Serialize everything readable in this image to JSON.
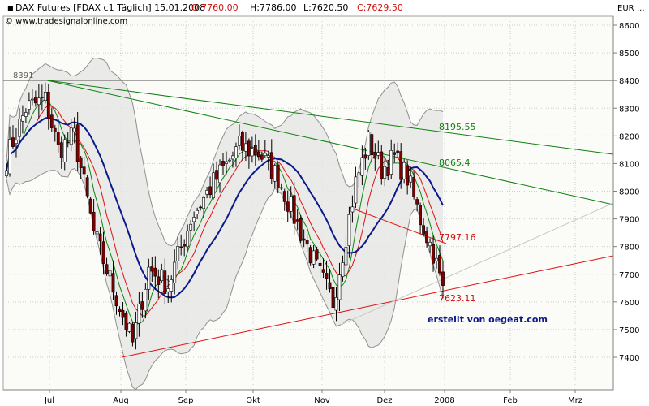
{
  "header": {
    "instrument": "DAX Futures [FDAX c1  Täglich] 15.01.2008",
    "open": "O:7760.00",
    "high": "H:7786.00",
    "low": "L:7620.50",
    "close": "C:7629.50",
    "copyright": "© www.tradesignalonline.com"
  },
  "colors": {
    "background": "#ffffff",
    "plot_background": "#fbfbf8",
    "grid": "#cccccc",
    "candle_up": "#ffffff",
    "candle_down": "#800000",
    "band_fill": "#e6e6e6",
    "band_line": "#909090",
    "ma_blue": "#0a1a8c",
    "ma_red": "#e01010",
    "ma_green": "#0a8a0a",
    "trend_green": "#108010",
    "trend_red": "#e01010",
    "horizontal": "#505050",
    "credit": "#0a1a8c"
  },
  "annotations": {
    "high_label": "8391",
    "upper_trend_label": "8195.55",
    "lower_trend_label": "8065.4",
    "red_trend_label": "7797.16",
    "last_label": "7623.11",
    "credit": "erstellt von oegeat.com"
  },
  "chart_data": {
    "type": "candlestick",
    "title": "DAX Futures [FDAX c1  Täglich] 15.01.2008",
    "currency_label": "EUR",
    "ylim": [
      7300,
      8650
    ],
    "y_ticks": [
      7400,
      7500,
      7600,
      7700,
      7800,
      7900,
      8000,
      8100,
      8200,
      8300,
      8400,
      8500,
      8600
    ],
    "y_tick_labels": [
      "7400",
      "7500",
      "7600",
      "7700",
      "7800",
      "7900",
      "8000",
      "8100",
      "8200",
      "8300",
      "8400",
      "8500",
      "8600"
    ],
    "x_tick_labels": [
      "Jul",
      "Aug",
      "Sep",
      "Okt",
      "Nov",
      "Dez",
      "2008",
      "Feb",
      "Mrz"
    ],
    "grid": true,
    "series": [
      {
        "kind": "price",
        "anchors": [
          {
            "i": 0,
            "v": 8120
          },
          {
            "i": 6,
            "v": 8300
          },
          {
            "i": 12,
            "v": 8330
          },
          {
            "i": 16,
            "v": 8150
          },
          {
            "i": 21,
            "v": 8200
          },
          {
            "i": 27,
            "v": 7850
          },
          {
            "i": 33,
            "v": 7650
          },
          {
            "i": 39,
            "v": 7450
          },
          {
            "i": 44,
            "v": 7720
          },
          {
            "i": 50,
            "v": 7660
          },
          {
            "i": 57,
            "v": 7900
          },
          {
            "i": 64,
            "v": 8030
          },
          {
            "i": 72,
            "v": 8160
          },
          {
            "i": 78,
            "v": 8140
          },
          {
            "i": 84,
            "v": 8050
          },
          {
            "i": 90,
            "v": 7880
          },
          {
            "i": 96,
            "v": 7720
          },
          {
            "i": 101,
            "v": 7600
          },
          {
            "i": 104,
            "v": 7780
          },
          {
            "i": 108,
            "v": 8030
          },
          {
            "i": 112,
            "v": 8180
          },
          {
            "i": 116,
            "v": 8080
          },
          {
            "i": 120,
            "v": 8120
          },
          {
            "i": 124,
            "v": 8050
          },
          {
            "i": 128,
            "v": 7900
          },
          {
            "i": 132,
            "v": 7780
          },
          {
            "i": 135,
            "v": 7640
          }
        ],
        "bars": 136
      }
    ],
    "trendlines": [
      {
        "name": "upper-trend",
        "from": [
          "2007-07-01",
          8391
        ],
        "to": [
          "2008-03-31",
          8110
        ],
        "value_label": "8195.55"
      },
      {
        "name": "lower-trend",
        "from": [
          "2007-07-01",
          8391
        ],
        "to": [
          "2008-03-31",
          7920
        ],
        "value_label": "8065.4"
      },
      {
        "name": "support-trend",
        "from": [
          "2007-08-16",
          7400
        ],
        "to": [
          "2008-03-31",
          7750
        ],
        "value_label": "7623.11"
      },
      {
        "name": "short-resistance",
        "from": [
          "2007-11-26",
          7890
        ],
        "to": [
          "2008-01-15",
          7797.16
        ],
        "value_label": "7797.16"
      },
      {
        "name": "horizontal-high",
        "level": 8391,
        "value_label": "8391"
      }
    ]
  }
}
